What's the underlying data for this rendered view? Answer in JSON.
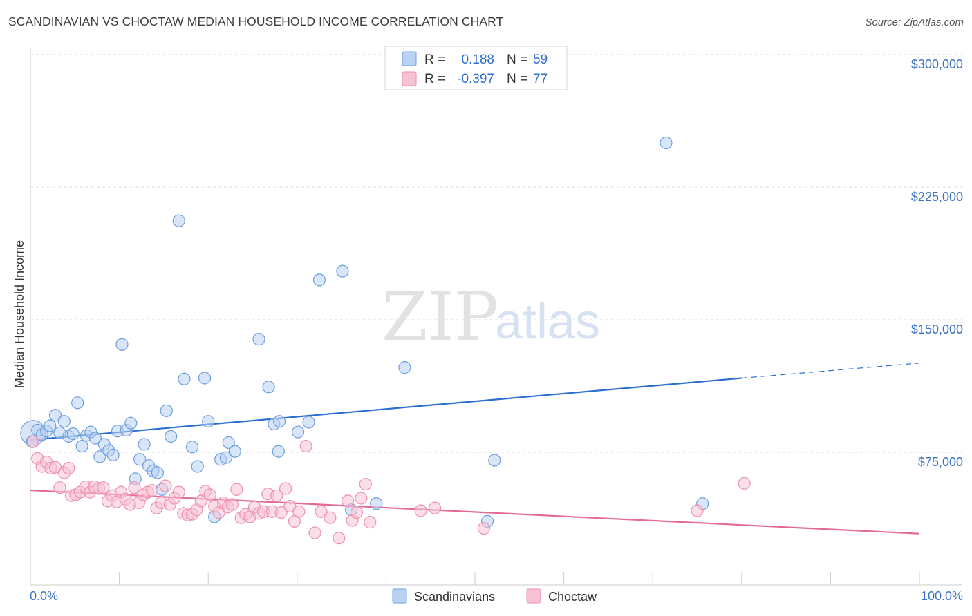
{
  "title": "SCANDINAVIAN VS CHOCTAW MEDIAN HOUSEHOLD INCOME CORRELATION CHART",
  "source": "Source: ZipAtlas.com",
  "watermark": {
    "zip": "ZIP",
    "atlas": "atlas"
  },
  "colors": {
    "blue_fill": "#b9d1f3",
    "blue_stroke": "#6d9ee0",
    "blue_line": "#2a6fd0",
    "pink_fill": "#f7c3d4",
    "pink_stroke": "#ee8fae",
    "pink_line": "#e46a95",
    "grid": "#dcdcdc",
    "tick_text": "#3a72c4"
  },
  "legend_top": {
    "rows": [
      {
        "r_label": "R =",
        "r_value": "0.188",
        "n_label": "N =",
        "n_value": "59",
        "color": "blue"
      },
      {
        "r_label": "R =",
        "r_value": "-0.397",
        "n_label": "N =",
        "n_value": "77",
        "color": "pink"
      }
    ]
  },
  "legend_bottom": [
    {
      "label": "Scandinavians",
      "color": "blue"
    },
    {
      "label": "Choctaw",
      "color": "pink"
    }
  ],
  "chart_data": {
    "type": "scatter",
    "title": "SCANDINAVIAN VS CHOCTAW MEDIAN HOUSEHOLD INCOME CORRELATION CHART",
    "xlabel": "",
    "ylabel": "Median Household Income",
    "xlim": [
      0,
      100
    ],
    "ylim": [
      0,
      320000
    ],
    "x_tick_labels": [
      "0.0%",
      "100.0%"
    ],
    "y_ticks": [
      75000,
      150000,
      225000,
      300000
    ],
    "y_tick_labels": [
      "$75,000",
      "$150,000",
      "$225,000",
      "$300,000"
    ],
    "grid": true,
    "legend_position": "top-center",
    "series": [
      {
        "name": "Scandinavians",
        "color": "blue",
        "r": 0.188,
        "n": 59,
        "trend": {
          "x0": 0,
          "y0": 82000,
          "x1": 80,
          "y1": 117000,
          "dashed_to_x": 100,
          "dashed_to_y": 125500
        },
        "points": [
          [
            0.2,
            81000
          ],
          [
            0.8,
            87500
          ],
          [
            1.3,
            85000
          ],
          [
            1.8,
            87000
          ],
          [
            2.2,
            90000
          ],
          [
            2.8,
            96000
          ],
          [
            3.3,
            86000
          ],
          [
            3.8,
            92500
          ],
          [
            4.3,
            84000
          ],
          [
            4.8,
            85500
          ],
          [
            5.3,
            103000
          ],
          [
            5.8,
            78500
          ],
          [
            6.3,
            84500
          ],
          [
            6.8,
            86500
          ],
          [
            7.3,
            83000
          ],
          [
            7.8,
            72500
          ],
          [
            8.3,
            79500
          ],
          [
            8.8,
            76000
          ],
          [
            9.3,
            73500
          ],
          [
            9.8,
            87000
          ],
          [
            10.3,
            136000
          ],
          [
            10.8,
            87500
          ],
          [
            11.3,
            91500
          ],
          [
            11.8,
            60000
          ],
          [
            12.3,
            71000
          ],
          [
            12.8,
            79500
          ],
          [
            13.3,
            67500
          ],
          [
            13.8,
            64500
          ],
          [
            14.3,
            63500
          ],
          [
            14.8,
            54000
          ],
          [
            15.3,
            98500
          ],
          [
            15.8,
            84000
          ],
          [
            16.7,
            206000
          ],
          [
            17.3,
            116500
          ],
          [
            18.2,
            78000
          ],
          [
            18.8,
            67000
          ],
          [
            19.6,
            117000
          ],
          [
            20.0,
            92500
          ],
          [
            20.7,
            38500
          ],
          [
            21.4,
            71000
          ],
          [
            22.0,
            72000
          ],
          [
            22.3,
            80500
          ],
          [
            23.0,
            75500
          ],
          [
            25.7,
            139000
          ],
          [
            26.8,
            112000
          ],
          [
            27.4,
            91000
          ],
          [
            28.0,
            92500
          ],
          [
            27.9,
            75500
          ],
          [
            30.1,
            86500
          ],
          [
            31.3,
            92000
          ],
          [
            32.5,
            172500
          ],
          [
            35.1,
            177500
          ],
          [
            36.1,
            42500
          ],
          [
            38.9,
            46000
          ],
          [
            42.1,
            123000
          ],
          [
            51.4,
            36000
          ],
          [
            52.2,
            70500
          ],
          [
            71.5,
            250000
          ],
          [
            75.6,
            46000
          ]
        ],
        "big_point": [
          0.3,
          86000
        ]
      },
      {
        "name": "Choctaw",
        "color": "pink",
        "r": -0.397,
        "n": 77,
        "trend": {
          "x0": 0,
          "y0": 53500,
          "x1": 100,
          "y1": 29000
        },
        "points": [
          [
            0.3,
            81000
          ],
          [
            0.8,
            71500
          ],
          [
            1.3,
            67000
          ],
          [
            1.8,
            69500
          ],
          [
            2.3,
            66000
          ],
          [
            2.8,
            66500
          ],
          [
            3.3,
            55000
          ],
          [
            3.8,
            63500
          ],
          [
            4.3,
            66000
          ],
          [
            4.6,
            50500
          ],
          [
            5.1,
            51000
          ],
          [
            5.6,
            52500
          ],
          [
            6.2,
            55500
          ],
          [
            6.7,
            52500
          ],
          [
            7.2,
            55500
          ],
          [
            7.7,
            54500
          ],
          [
            8.2,
            55000
          ],
          [
            8.7,
            47500
          ],
          [
            9.2,
            50500
          ],
          [
            9.7,
            47000
          ],
          [
            10.2,
            52500
          ],
          [
            10.7,
            48500
          ],
          [
            11.2,
            45500
          ],
          [
            11.7,
            55000
          ],
          [
            12.2,
            46500
          ],
          [
            12.7,
            51000
          ],
          [
            13.2,
            52500
          ],
          [
            13.7,
            53500
          ],
          [
            14.2,
            43500
          ],
          [
            14.7,
            46500
          ],
          [
            15.2,
            56000
          ],
          [
            15.7,
            45500
          ],
          [
            16.2,
            49000
          ],
          [
            16.7,
            52500
          ],
          [
            17.2,
            40500
          ],
          [
            17.7,
            39500
          ],
          [
            18.2,
            40000
          ],
          [
            18.7,
            42500
          ],
          [
            19.2,
            47500
          ],
          [
            19.7,
            53000
          ],
          [
            20.2,
            51000
          ],
          [
            20.7,
            44500
          ],
          [
            21.2,
            41000
          ],
          [
            21.7,
            46500
          ],
          [
            22.2,
            44000
          ],
          [
            22.7,
            45500
          ],
          [
            23.2,
            54000
          ],
          [
            23.7,
            38000
          ],
          [
            24.2,
            40000
          ],
          [
            24.7,
            38500
          ],
          [
            25.2,
            44000
          ],
          [
            25.7,
            40500
          ],
          [
            26.2,
            41500
          ],
          [
            26.7,
            51500
          ],
          [
            27.2,
            41500
          ],
          [
            27.7,
            50500
          ],
          [
            28.2,
            41000
          ],
          [
            28.7,
            54500
          ],
          [
            29.2,
            44500
          ],
          [
            29.7,
            36000
          ],
          [
            30.2,
            41500
          ],
          [
            31.0,
            78500
          ],
          [
            32.0,
            29500
          ],
          [
            32.7,
            41500
          ],
          [
            33.7,
            38000
          ],
          [
            34.7,
            26500
          ],
          [
            35.7,
            47500
          ],
          [
            36.2,
            36500
          ],
          [
            36.7,
            41000
          ],
          [
            37.2,
            49000
          ],
          [
            37.7,
            57000
          ],
          [
            38.2,
            35500
          ],
          [
            43.9,
            42000
          ],
          [
            45.5,
            43500
          ],
          [
            51.0,
            32000
          ],
          [
            75.0,
            42000
          ],
          [
            80.3,
            57500
          ]
        ]
      }
    ]
  }
}
